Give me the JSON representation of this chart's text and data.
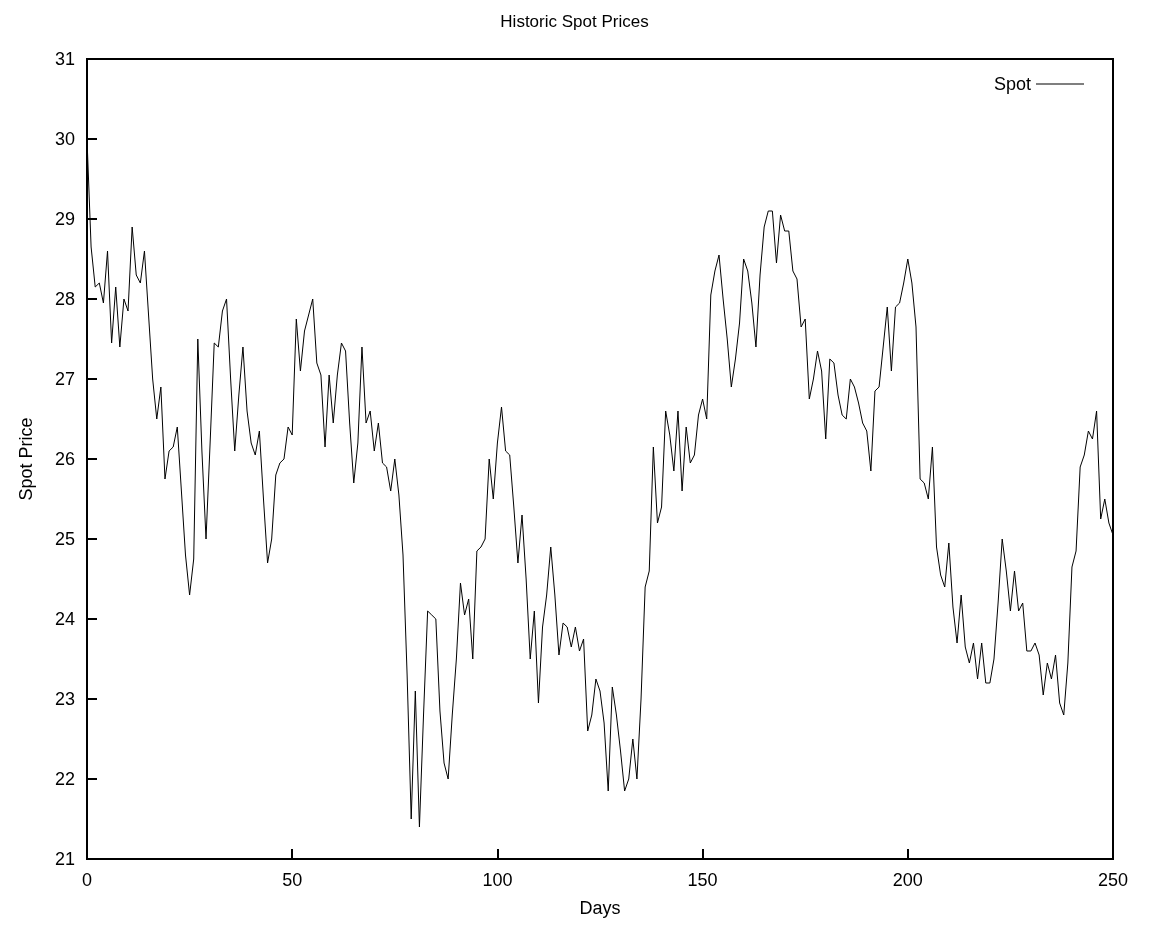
{
  "chart_data": {
    "type": "line",
    "title": "Historic Spot Prices",
    "xlabel": "Days",
    "ylabel": "Spot Price",
    "xlim": [
      0,
      250
    ],
    "xticks": [
      0,
      50,
      100,
      150,
      200,
      250
    ],
    "ylim": [
      21,
      31
    ],
    "yticks": [
      21,
      22,
      23,
      24,
      25,
      26,
      27,
      28,
      29,
      30,
      31
    ],
    "grid": false,
    "legend": "top right",
    "marker": "none",
    "line_style": "solid",
    "x": [
      0,
      1,
      2,
      3,
      4,
      5,
      6,
      7,
      8,
      9,
      10,
      11,
      12,
      13,
      14,
      15,
      16,
      17,
      18,
      19,
      20,
      21,
      22,
      23,
      24,
      25,
      26,
      27,
      28,
      29,
      30,
      31,
      32,
      33,
      34,
      35,
      36,
      37,
      38,
      39,
      40,
      41,
      42,
      43,
      44,
      45,
      46,
      47,
      48,
      49,
      50,
      51,
      52,
      53,
      54,
      55,
      56,
      57,
      58,
      59,
      60,
      61,
      62,
      63,
      64,
      65,
      66,
      67,
      68,
      69,
      70,
      71,
      72,
      73,
      74,
      75,
      76,
      77,
      78,
      79,
      80,
      81,
      82,
      83,
      84,
      85,
      86,
      87,
      88,
      89,
      90,
      91,
      92,
      93,
      94,
      95,
      96,
      97,
      98,
      99,
      100,
      101,
      102,
      103,
      104,
      105,
      106,
      107,
      108,
      109,
      110,
      111,
      112,
      113,
      114,
      115,
      116,
      117,
      118,
      119,
      120,
      121,
      122,
      123,
      124,
      125,
      126,
      127,
      128,
      129,
      130,
      131,
      132,
      133,
      134,
      135,
      136,
      137,
      138,
      139,
      140,
      141,
      142,
      143,
      144,
      145,
      146,
      147,
      148,
      149,
      150,
      151,
      152,
      153,
      154,
      155,
      156,
      157,
      158,
      159,
      160,
      161,
      162,
      163,
      164,
      165,
      166,
      167,
      168,
      169,
      170,
      171,
      172,
      173,
      174,
      175,
      176,
      177,
      178,
      179,
      180,
      181,
      182,
      183,
      184,
      185,
      186,
      187,
      188,
      189,
      190,
      191,
      192,
      193,
      194,
      195,
      196,
      197,
      198,
      199,
      200,
      201,
      202,
      203,
      204,
      205,
      206,
      207,
      208,
      209,
      210,
      211,
      212,
      213,
      214,
      215,
      216,
      217,
      218,
      219,
      220,
      221,
      222,
      223,
      224,
      225,
      226,
      227,
      228,
      229,
      230,
      231,
      232,
      233,
      234,
      235,
      236,
      237,
      238,
      239,
      240,
      241,
      242,
      243,
      244,
      245,
      246,
      247,
      248,
      249,
      250
    ],
    "series": [
      {
        "name": "Spot",
        "color": "#000000",
        "values": [
          30.0,
          28.65,
          28.15,
          28.2,
          27.95,
          28.6,
          27.45,
          28.15,
          27.4,
          28.0,
          27.85,
          28.9,
          28.3,
          28.2,
          28.6,
          27.8,
          27.0,
          26.5,
          26.9,
          25.75,
          26.1,
          26.15,
          26.4,
          25.6,
          24.8,
          24.3,
          24.75,
          27.5,
          26.1,
          25.0,
          26.2,
          27.45,
          27.4,
          27.85,
          28.0,
          27.0,
          26.1,
          26.8,
          27.4,
          26.6,
          26.2,
          26.05,
          26.35,
          25.5,
          24.7,
          25.0,
          25.8,
          25.95,
          26.0,
          26.4,
          26.3,
          27.75,
          27.1,
          27.6,
          27.8,
          28.0,
          27.2,
          27.05,
          26.15,
          27.05,
          26.45,
          27.05,
          27.45,
          27.35,
          26.45,
          25.7,
          26.2,
          27.4,
          26.45,
          26.6,
          26.1,
          26.45,
          25.95,
          25.9,
          25.6,
          26.0,
          25.55,
          24.8,
          23.3,
          21.5,
          23.1,
          21.4,
          22.8,
          24.1,
          24.05,
          24.0,
          22.85,
          22.2,
          22.0,
          22.8,
          23.5,
          24.45,
          24.05,
          24.25,
          23.5,
          24.85,
          24.9,
          25.0,
          26.0,
          25.5,
          26.2,
          26.65,
          26.1,
          26.05,
          25.4,
          24.7,
          25.3,
          24.5,
          23.5,
          24.1,
          22.95,
          23.9,
          24.3,
          24.9,
          24.3,
          23.55,
          23.95,
          23.9,
          23.65,
          23.9,
          23.6,
          23.75,
          22.6,
          22.8,
          23.25,
          23.1,
          22.7,
          21.85,
          23.15,
          22.8,
          22.35,
          21.85,
          22.0,
          22.5,
          22.0,
          23.0,
          24.4,
          24.6,
          26.15,
          25.2,
          25.4,
          26.6,
          26.3,
          25.85,
          26.6,
          25.6,
          26.4,
          25.95,
          26.05,
          26.55,
          26.75,
          26.5,
          28.05,
          28.35,
          28.55,
          28.0,
          27.5,
          26.9,
          27.25,
          27.7,
          28.5,
          28.35,
          27.95,
          27.4,
          28.3,
          28.9,
          29.1,
          29.1,
          28.45,
          29.05,
          28.85,
          28.85,
          28.35,
          28.25,
          27.65,
          27.75,
          26.75,
          27.0,
          27.35,
          27.1,
          26.25,
          27.25,
          27.2,
          26.8,
          26.55,
          26.5,
          27.0,
          26.9,
          26.7,
          26.45,
          26.35,
          25.85,
          26.85,
          26.9,
          27.4,
          27.9,
          27.1,
          27.9,
          27.95,
          28.2,
          28.5,
          28.2,
          27.65,
          25.75,
          25.7,
          25.5,
          26.15,
          24.9,
          24.55,
          24.4,
          24.95,
          24.15,
          23.7,
          24.3,
          23.65,
          23.45,
          23.7,
          23.25,
          23.7,
          23.2,
          23.2,
          23.5,
          24.2,
          25.0,
          24.6,
          24.1,
          24.6,
          24.1,
          24.2,
          23.6,
          23.6,
          23.7,
          23.55,
          23.05,
          23.45,
          23.25,
          23.55,
          22.95,
          22.8,
          23.45,
          24.65,
          24.85,
          25.9,
          26.05,
          26.35,
          26.25,
          26.6,
          25.25,
          25.5,
          25.2,
          25.05
        ]
      }
    ]
  }
}
